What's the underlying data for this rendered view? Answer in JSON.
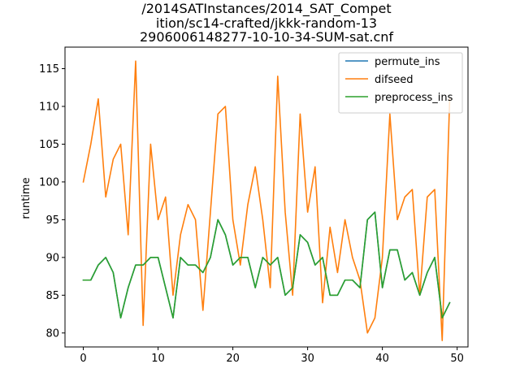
{
  "chart_data": {
    "type": "line",
    "title_lines": [
      "/2014SATInstances/2014_SAT_Compet",
      "ition/sc14-crafted/jkkk-random-13",
      "2906006148277-10-10-34-SUM-sat.cnf"
    ],
    "xlabel": "",
    "ylabel": "runtime",
    "xlim": [
      -2.45,
      51.45
    ],
    "ylim": [
      78.15,
      117.85
    ],
    "xticks": [
      0,
      10,
      20,
      30,
      40,
      50
    ],
    "yticks": [
      80,
      85,
      90,
      95,
      100,
      105,
      110,
      115
    ],
    "grid": false,
    "legend_position": "top-right",
    "x": [
      0,
      1,
      2,
      3,
      4,
      5,
      6,
      7,
      8,
      9,
      10,
      11,
      12,
      13,
      14,
      15,
      16,
      17,
      18,
      19,
      20,
      21,
      22,
      23,
      24,
      25,
      26,
      27,
      28,
      29,
      30,
      31,
      32,
      33,
      34,
      35,
      36,
      37,
      38,
      39,
      40,
      41,
      42,
      43,
      44,
      45,
      46,
      47,
      48,
      49
    ],
    "series": [
      {
        "name": "permute_ins",
        "color": "#1f77b4",
        "values": [
          87,
          87,
          89,
          90,
          88,
          82,
          86,
          89,
          89,
          90,
          90,
          86,
          82,
          90,
          89,
          89,
          88,
          90,
          95,
          93,
          89,
          90,
          90,
          86,
          90,
          89,
          90,
          85,
          86,
          93,
          92,
          89,
          90,
          85,
          85,
          87,
          87,
          86,
          95,
          96,
          86,
          91,
          91,
          87,
          88,
          85,
          88,
          90,
          82,
          84
        ]
      },
      {
        "name": "difseed",
        "color": "#ff7f0e",
        "values": [
          100,
          105,
          111,
          98,
          103,
          105,
          93,
          116,
          81,
          105,
          95,
          98,
          85,
          93,
          97,
          95,
          83,
          96,
          109,
          110,
          95,
          89,
          97,
          102,
          95,
          86,
          114,
          96,
          85,
          109,
          96,
          102,
          84,
          94,
          88,
          95,
          90,
          87,
          80,
          82,
          90,
          109,
          95,
          98,
          99,
          85,
          98,
          99,
          79,
          111
        ]
      },
      {
        "name": "preprocess_ins",
        "color": "#2ca02c",
        "values": [
          87,
          87,
          89,
          90,
          88,
          82,
          86,
          89,
          89,
          90,
          90,
          86,
          82,
          90,
          89,
          89,
          88,
          90,
          95,
          93,
          89,
          90,
          90,
          86,
          90,
          89,
          90,
          85,
          86,
          93,
          92,
          89,
          90,
          85,
          85,
          87,
          87,
          86,
          95,
          96,
          86,
          91,
          91,
          87,
          88,
          85,
          88,
          90,
          82,
          84
        ]
      }
    ]
  }
}
